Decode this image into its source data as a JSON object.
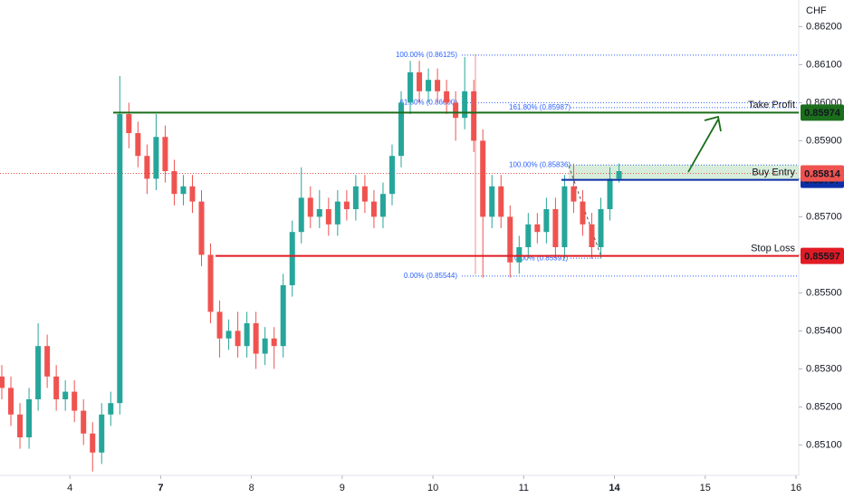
{
  "chart_data": {
    "type": "candlestick",
    "currency": "CHF",
    "up_color": "#26a69a",
    "down_color": "#ef5350",
    "xlim": [
      -0.77,
      8.03
    ],
    "ylim": [
      0.8502,
      0.8627
    ],
    "xticks": [
      {
        "value": 0,
        "label": "4"
      },
      {
        "value": 1,
        "label": "7"
      },
      {
        "value": 2,
        "label": "8"
      },
      {
        "value": 3,
        "label": "9"
      },
      {
        "value": 4,
        "label": "10"
      },
      {
        "value": 5,
        "label": "11"
      },
      {
        "value": 6,
        "label": "14"
      },
      {
        "value": 7,
        "label": "15"
      },
      {
        "value": 8,
        "label": "16"
      }
    ],
    "yticks": [
      {
        "value": 0.862,
        "label": "0.86200"
      },
      {
        "value": 0.861,
        "label": "0.86100"
      },
      {
        "value": 0.86,
        "label": "0.86000"
      },
      {
        "value": 0.859,
        "label": "0.85900"
      },
      {
        "value": 0.858,
        "label": "0.85800"
      },
      {
        "value": 0.857,
        "label": "0.85700"
      },
      {
        "value": 0.856,
        "label": "0.85600"
      },
      {
        "value": 0.855,
        "label": "0.85500"
      },
      {
        "value": 0.854,
        "label": "0.85400"
      },
      {
        "value": 0.853,
        "label": "0.85300"
      },
      {
        "value": 0.852,
        "label": "0.85200"
      },
      {
        "value": 0.851,
        "label": "0.85100"
      }
    ],
    "x": [
      -0.75,
      -0.65,
      -0.55,
      -0.45,
      -0.35,
      -0.25,
      -0.15,
      -0.05,
      0.05,
      0.15,
      0.25,
      0.35,
      0.45,
      0.55,
      0.65,
      0.75,
      0.85,
      0.95,
      1.05,
      1.15,
      1.25,
      1.35,
      1.45,
      1.55,
      1.65,
      1.75,
      1.85,
      1.95,
      2.05,
      2.15,
      2.25,
      2.35,
      2.45,
      2.55,
      2.65,
      2.75,
      2.85,
      2.95,
      3.05,
      3.15,
      3.25,
      3.35,
      3.45,
      3.55,
      3.65,
      3.75,
      3.85,
      3.95,
      4.05,
      4.15,
      4.25,
      4.35,
      4.45,
      4.55,
      4.65,
      4.75,
      4.85,
      4.95,
      5.05,
      5.15,
      5.25,
      5.35,
      5.45,
      5.55,
      5.65,
      5.75,
      5.85,
      5.95,
      6.05
    ],
    "open": [
      0.8528,
      0.8525,
      0.8518,
      0.8512,
      0.8522,
      0.8536,
      0.8528,
      0.8522,
      0.8524,
      0.8519,
      0.8513,
      0.8508,
      0.8518,
      0.8521,
      0.8597,
      0.8592,
      0.8586,
      0.858,
      0.8591,
      0.8582,
      0.8576,
      0.8578,
      0.8574,
      0.856,
      0.8545,
      0.8538,
      0.854,
      0.8536,
      0.8542,
      0.8534,
      0.8538,
      0.8536,
      0.8552,
      0.8566,
      0.8575,
      0.857,
      0.8572,
      0.8568,
      0.8574,
      0.8572,
      0.8578,
      0.8574,
      0.857,
      0.8576,
      0.8586,
      0.86,
      0.8608,
      0.8603,
      0.8606,
      0.8603,
      0.86,
      0.8596,
      0.8603,
      0.859,
      0.857,
      0.8578,
      0.857,
      0.8558,
      0.8562,
      0.8568,
      0.8566,
      0.8572,
      0.8562,
      0.8578,
      0.8574,
      0.8568,
      0.8562,
      0.8572,
      0.858
    ],
    "high": [
      0.8531,
      0.8528,
      0.8521,
      0.8525,
      0.8542,
      0.8539,
      0.8531,
      0.8527,
      0.8527,
      0.8522,
      0.8516,
      0.8521,
      0.8524,
      0.8607,
      0.86,
      0.8595,
      0.8589,
      0.8597,
      0.8594,
      0.8585,
      0.8581,
      0.8581,
      0.8577,
      0.8563,
      0.8548,
      0.8543,
      0.8545,
      0.8545,
      0.8545,
      0.8541,
      0.8541,
      0.8555,
      0.8569,
      0.8583,
      0.8578,
      0.8577,
      0.8575,
      0.8577,
      0.8577,
      0.8581,
      0.8581,
      0.8577,
      0.8579,
      0.8589,
      0.8603,
      0.8611,
      0.8611,
      0.8609,
      0.8609,
      0.8606,
      0.8603,
      0.8612,
      0.8606,
      0.8593,
      0.8581,
      0.8581,
      0.8573,
      0.8565,
      0.8571,
      0.8571,
      0.8575,
      0.8575,
      0.8581,
      0.8584,
      0.8577,
      0.8571,
      0.8575,
      0.8583,
      0.8584
    ],
    "low": [
      0.8522,
      0.8515,
      0.8509,
      0.8509,
      0.8519,
      0.8525,
      0.8519,
      0.8519,
      0.8516,
      0.851,
      0.8503,
      0.8505,
      0.8515,
      0.8518,
      0.8588,
      0.8583,
      0.8576,
      0.8577,
      0.8579,
      0.8573,
      0.8573,
      0.8571,
      0.8557,
      0.8542,
      0.8533,
      0.8535,
      0.8533,
      0.8533,
      0.853,
      0.8531,
      0.853,
      0.8533,
      0.8549,
      0.8563,
      0.8567,
      0.8567,
      0.8565,
      0.8565,
      0.8569,
      0.8569,
      0.8571,
      0.8567,
      0.8567,
      0.8573,
      0.8583,
      0.8597,
      0.86,
      0.86,
      0.86,
      0.8597,
      0.859,
      0.8593,
      0.8587,
      0.8554,
      0.8567,
      0.8567,
      0.8554,
      0.8555,
      0.8559,
      0.8563,
      0.8563,
      0.8559,
      0.8559,
      0.8571,
      0.8565,
      0.8559,
      0.8559,
      0.8569,
      0.8579
    ],
    "close": [
      0.8525,
      0.8518,
      0.8512,
      0.8522,
      0.8536,
      0.8528,
      0.8522,
      0.8524,
      0.8519,
      0.8513,
      0.8508,
      0.8518,
      0.8521,
      0.8597,
      0.8592,
      0.8586,
      0.858,
      0.8591,
      0.8582,
      0.8576,
      0.8578,
      0.8574,
      0.856,
      0.8545,
      0.8538,
      0.854,
      0.8536,
      0.8542,
      0.8534,
      0.8538,
      0.8536,
      0.8552,
      0.8566,
      0.8575,
      0.857,
      0.8572,
      0.8568,
      0.8574,
      0.8572,
      0.8578,
      0.8574,
      0.857,
      0.8576,
      0.8586,
      0.86,
      0.8608,
      0.8603,
      0.8606,
      0.8603,
      0.86,
      0.8596,
      0.8603,
      0.859,
      0.857,
      0.8578,
      0.857,
      0.8558,
      0.8562,
      0.8568,
      0.8566,
      0.8572,
      0.8562,
      0.8578,
      0.8574,
      0.8568,
      0.8562,
      0.8572,
      0.858,
      0.8582
    ],
    "levels": [
      {
        "name": "Take Profit",
        "value": 0.85974,
        "color": "#1b6e1b"
      },
      {
        "name": "Buy Entry",
        "value": 0.85797,
        "color": "#0d2fa8"
      },
      {
        "name": "Stop Loss",
        "value": 0.85597,
        "color": "#e01b24"
      }
    ],
    "current_price": {
      "value": 0.85814,
      "color": "#ef5350"
    },
    "fib_labels": [
      {
        "label": "100.00% (0.86125)",
        "value": 0.86125
      },
      {
        "label": "61.80% (0.86000)",
        "value": 0.86
      },
      {
        "label": "0.00% (0.85544)",
        "value": 0.85544
      },
      {
        "label": "161.80% (0.85987)",
        "value": 0.85987
      },
      {
        "label": "100.00% (0.85836)",
        "value": 0.85836
      },
      {
        "label": "0.00% (0.85591)",
        "value": 0.85591
      }
    ]
  }
}
